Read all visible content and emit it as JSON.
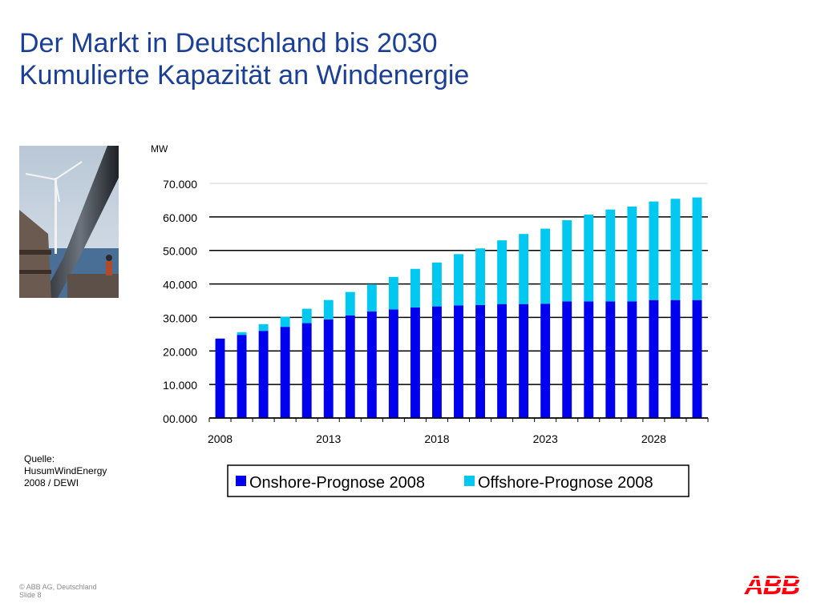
{
  "title": {
    "line1": "Der Markt in Deutschland bis 2030",
    "line2": "Kumulierte Kapazität an Windenergie"
  },
  "source": {
    "line1": "Quelle:",
    "line2": "HusumWindEnergy",
    "line3": "2008 / DEWI"
  },
  "footer": {
    "copyright": "© ABB AG, Deutschland",
    "slide": "Slide 8"
  },
  "logo": {
    "text": "ABB"
  },
  "colors": {
    "title": "#1b3f97",
    "onshore": "#0000ee",
    "offshore": "#00c8f0",
    "logo": "#ff000f"
  },
  "chart_data": {
    "type": "bar",
    "stacked": true,
    "unit_label": "MW",
    "categories": [
      "2008",
      "2009",
      "2010",
      "2011",
      "2012",
      "2013",
      "2014",
      "2015",
      "2016",
      "2017",
      "2018",
      "2019",
      "2020",
      "2021",
      "2022",
      "2023",
      "2024",
      "2025",
      "2026",
      "2027",
      "2028",
      "2029",
      "2030"
    ],
    "x_tick_labels": [
      "2008",
      "2013",
      "2018",
      "2023",
      "2028"
    ],
    "series": [
      {
        "name": "Onshore-Prognose 2008",
        "values": [
          23700,
          24800,
          26000,
          27200,
          28300,
          29400,
          30600,
          31800,
          32400,
          33000,
          33300,
          33600,
          33700,
          34000,
          34000,
          34100,
          34800,
          34800,
          34800,
          34800,
          35200,
          35200,
          35200
        ]
      },
      {
        "name": "Offshore-Prognose 2008",
        "values": [
          0,
          800,
          2000,
          3000,
          4300,
          5800,
          7000,
          8100,
          9700,
          11500,
          13100,
          15300,
          16900,
          19000,
          20900,
          22400,
          24200,
          25900,
          27400,
          28300,
          29400,
          30200,
          30600
        ]
      }
    ],
    "y_tick_labels": [
      "00.000",
      "10.000",
      "20.000",
      "30.000",
      "40.000",
      "50.000",
      "60.000",
      "70.000"
    ],
    "ylim": [
      0,
      70000
    ],
    "legend_position": "bottom"
  }
}
